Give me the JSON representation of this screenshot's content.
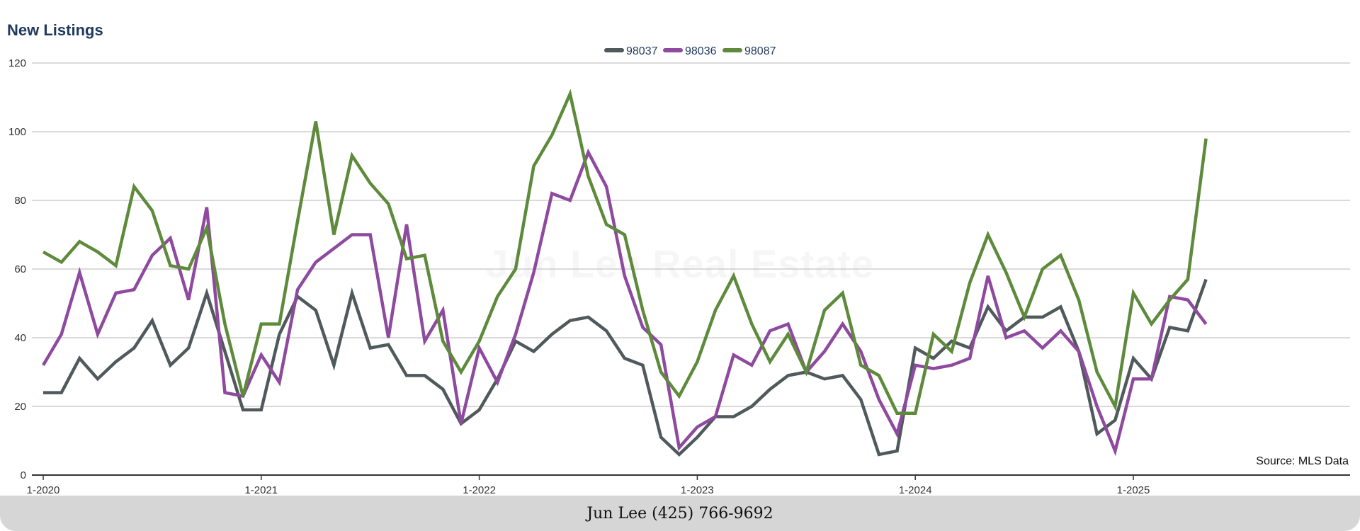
{
  "watermark": "Jun Lee Real Estate",
  "source_note": "Source: MLS Data",
  "footer": {
    "contact": "Jun Lee (425) 766-9692"
  },
  "chart_data": {
    "type": "line",
    "title": "New Listings",
    "xlabel": "",
    "ylabel": "",
    "ylim": [
      0,
      120
    ],
    "yticks": [
      0,
      20,
      40,
      60,
      80,
      100,
      120
    ],
    "xtick_labels": [
      "1-2020",
      "1-2021",
      "1-2022",
      "1-2023",
      "1-2024",
      "1-2025"
    ],
    "x_start": "1-2020",
    "x_end": "5-2025",
    "grid": true,
    "legend_position": "top-center",
    "categories": [
      "1-2020",
      "2-2020",
      "3-2020",
      "4-2020",
      "5-2020",
      "6-2020",
      "7-2020",
      "8-2020",
      "9-2020",
      "10-2020",
      "11-2020",
      "12-2020",
      "1-2021",
      "2-2021",
      "3-2021",
      "4-2021",
      "5-2021",
      "6-2021",
      "7-2021",
      "8-2021",
      "9-2021",
      "10-2021",
      "11-2021",
      "12-2021",
      "1-2022",
      "2-2022",
      "3-2022",
      "4-2022",
      "5-2022",
      "6-2022",
      "7-2022",
      "8-2022",
      "9-2022",
      "10-2022",
      "11-2022",
      "12-2022",
      "1-2023",
      "2-2023",
      "3-2023",
      "4-2023",
      "5-2023",
      "6-2023",
      "7-2023",
      "8-2023",
      "9-2023",
      "10-2023",
      "11-2023",
      "12-2023",
      "1-2024",
      "2-2024",
      "3-2024",
      "4-2024",
      "5-2024",
      "6-2024",
      "7-2024",
      "8-2024",
      "9-2024",
      "10-2024",
      "11-2024",
      "12-2024",
      "1-2025",
      "2-2025",
      "3-2025",
      "4-2025",
      "5-2025"
    ],
    "series": [
      {
        "name": "98037",
        "color": "#505a5c",
        "values": [
          24,
          24,
          34,
          28,
          33,
          37,
          45,
          32,
          37,
          53,
          36,
          19,
          19,
          41,
          52,
          48,
          32,
          53,
          37,
          38,
          29,
          29,
          25,
          15,
          19,
          28,
          39,
          36,
          41,
          45,
          46,
          42,
          34,
          32,
          11,
          6,
          11,
          17,
          17,
          20,
          25,
          29,
          30,
          28,
          29,
          22,
          6,
          7,
          37,
          34,
          39,
          37,
          49,
          42,
          46,
          46,
          49,
          36,
          12,
          16,
          34,
          28,
          43,
          42,
          57
        ]
      },
      {
        "name": "98036",
        "color": "#8e4a9e",
        "values": [
          32,
          41,
          59,
          41,
          53,
          54,
          64,
          69,
          51,
          78,
          24,
          23,
          35,
          27,
          54,
          62,
          66,
          70,
          70,
          40,
          73,
          39,
          48,
          15,
          37,
          27,
          41,
          59,
          82,
          80,
          94,
          84,
          58,
          43,
          38,
          8,
          14,
          17,
          35,
          32,
          42,
          44,
          30,
          36,
          44,
          36,
          22,
          12,
          32,
          31,
          32,
          34,
          58,
          40,
          42,
          37,
          42,
          36,
          20,
          7,
          28,
          28,
          52,
          51,
          44
        ]
      },
      {
        "name": "98087",
        "color": "#5e8a3c",
        "values": [
          65,
          62,
          68,
          65,
          61,
          84,
          77,
          61,
          60,
          72,
          44,
          23,
          44,
          44,
          74,
          103,
          70,
          93,
          85,
          79,
          63,
          64,
          39,
          30,
          39,
          52,
          60,
          90,
          99,
          111,
          87,
          73,
          70,
          48,
          30,
          23,
          33,
          48,
          58,
          44,
          33,
          41,
          30,
          48,
          53,
          32,
          29,
          18,
          18,
          41,
          36,
          56,
          70,
          59,
          46,
          60,
          64,
          51,
          30,
          20,
          53,
          44,
          51,
          57,
          98
        ]
      }
    ]
  }
}
